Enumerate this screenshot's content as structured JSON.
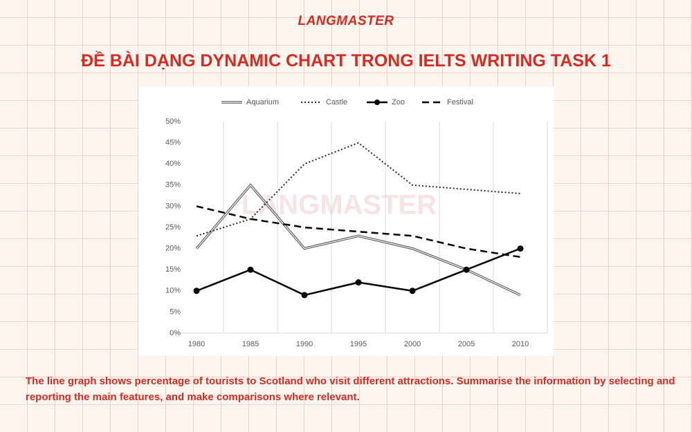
{
  "logo": "LANGMASTER",
  "heading": "ĐỀ BÀI DẠNG DYNAMIC CHART TRONG IELTS WRITING TASK 1",
  "watermark": "LANGMASTER",
  "description": "The line graph shows percentage of tourists to Scotland who visit different attractions. Summarise the information by selecting and reporting the main features, and make comparisons where relevant.",
  "chart_data": {
    "type": "line",
    "categories": [
      "1980",
      "1985",
      "1990",
      "1995",
      "2000",
      "2005",
      "2010"
    ],
    "series": [
      {
        "name": "Aquarium",
        "color": "#595959",
        "style": "double",
        "values": [
          20,
          35,
          20,
          23,
          20,
          15,
          9
        ]
      },
      {
        "name": "Castle",
        "color": "#262626",
        "style": "dotted",
        "values": [
          23,
          27,
          40,
          45,
          35,
          34,
          33
        ]
      },
      {
        "name": "Zoo",
        "color": "#000000",
        "style": "marker",
        "values": [
          10,
          15,
          9,
          12,
          10,
          15,
          20
        ]
      },
      {
        "name": "Festival",
        "color": "#000000",
        "style": "dashed",
        "values": [
          30,
          27,
          25,
          24,
          23,
          20,
          18
        ]
      }
    ],
    "ylim": [
      0,
      50
    ],
    "yticks": [
      {
        "value": 0,
        "label": "0%"
      },
      {
        "value": 5,
        "label": "5%"
      },
      {
        "value": 10,
        "label": "10%"
      },
      {
        "value": 15,
        "label": "15%"
      },
      {
        "value": 20,
        "label": "20%"
      },
      {
        "value": 25,
        "label": "25%"
      },
      {
        "value": 30,
        "label": "30%"
      },
      {
        "value": 35,
        "label": "35%"
      },
      {
        "value": 40,
        "label": "40%"
      },
      {
        "value": 45,
        "label": "45%"
      },
      {
        "value": 50,
        "label": "50%"
      }
    ],
    "legend": "top",
    "grid": "vertical"
  }
}
